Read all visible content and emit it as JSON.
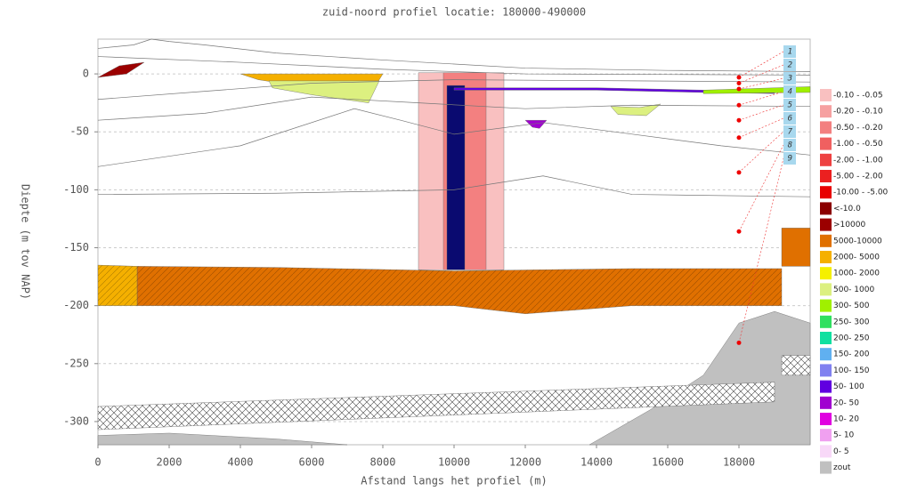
{
  "chart_data": {
    "type": "profile",
    "title": "zuid-noord profiel locatie: 180000-490000",
    "x_label": "Afstand langs het profiel (m)",
    "y_label": "Diepte (m tov NAP)",
    "xlim": [
      0,
      20000
    ],
    "ylim": [
      -320,
      30
    ],
    "xticks": [
      0,
      2000,
      4000,
      6000,
      8000,
      10000,
      12000,
      14000,
      16000,
      18000
    ],
    "yticks": [
      -300,
      -250,
      -200,
      -150,
      -100,
      -50,
      0
    ],
    "grid": true,
    "bodies": [
      {
        "color": "#c0c0c0",
        "x": [
          13800,
          15500,
          17000,
          18000,
          19000,
          20000,
          20000
        ],
        "y": [
          -320,
          -290,
          -260,
          -215,
          -205,
          -215,
          -320
        ]
      },
      {
        "color": "#c0c0c0",
        "x": [
          0,
          2000,
          5000,
          7000,
          0
        ],
        "y": [
          -312,
          -310,
          -315,
          -320,
          -320
        ]
      },
      {
        "color": "#ffffff",
        "pattern": "cross",
        "x": [
          0,
          19000,
          19000,
          0
        ],
        "y": [
          -287,
          -266,
          -283,
          -307
        ]
      },
      {
        "color": "#ffffff",
        "pattern": "cross",
        "x": [
          19200,
          20000,
          20000,
          19200
        ],
        "y": [
          -243,
          -243,
          -260,
          -260
        ]
      },
      {
        "color": "#e07000",
        "pattern": "diagonal",
        "x": [
          1100,
          5000,
          10000,
          15000,
          19200,
          19200,
          15000,
          12000,
          10000,
          1100
        ],
        "y": [
          -166,
          -167,
          -170,
          -168,
          -168,
          -200,
          -200,
          -207,
          -200,
          -200
        ]
      },
      {
        "color": "#f5b000",
        "pattern": "diagonal",
        "x": [
          0,
          1100,
          1100,
          0
        ],
        "y": [
          -165,
          -166,
          -200,
          -200
        ]
      },
      {
        "color": "#e07000",
        "x": [
          19200,
          20000,
          20000,
          19200
        ],
        "y": [
          -133,
          -133,
          -166,
          -166
        ]
      },
      {
        "color": "#f9c0c0",
        "x": [
          9000,
          11400,
          11400,
          9000
        ],
        "y": [
          1,
          1,
          -169,
          -169
        ]
      },
      {
        "color": "#f38080",
        "x": [
          9700,
          10900,
          10900,
          9700
        ],
        "y": [
          1,
          1,
          -169,
          -169
        ]
      },
      {
        "color": "#0a0a70",
        "x": [
          9800,
          10300,
          10300,
          9800
        ],
        "y": [
          -10,
          -10,
          -169,
          -169
        ]
      },
      {
        "color": "#9b0000",
        "x": [
          0,
          600,
          1300,
          800,
          0
        ],
        "y": [
          -3,
          7,
          10,
          0,
          -3
        ]
      },
      {
        "color": "#f5b000",
        "x": [
          4000,
          8000,
          7800,
          6000,
          4500
        ],
        "y": [
          0,
          0,
          -10,
          -12,
          -5
        ]
      },
      {
        "color": "#dcf080",
        "x": [
          4800,
          7900,
          7600,
          6000,
          4900
        ],
        "y": [
          -6,
          -6,
          -25,
          -18,
          -12
        ]
      },
      {
        "color": "#6000e0",
        "x": [
          10000,
          14000,
          17000,
          19000,
          19000,
          17000,
          14000,
          10000
        ],
        "y": [
          -12,
          -12,
          -14,
          -15,
          -17,
          -16,
          -14,
          -14
        ]
      },
      {
        "color": "#a0f000",
        "x": [
          17000,
          20000,
          20000,
          17000
        ],
        "y": [
          -14,
          -11,
          -16,
          -17
        ]
      },
      {
        "color": "#dcf080",
        "x": [
          14400,
          15200,
          15800,
          15400,
          14600
        ],
        "y": [
          -28,
          -29,
          -26,
          -36,
          -35
        ]
      },
      {
        "color": "#a000d0",
        "x": [
          12000,
          12600,
          12400,
          12200
        ],
        "y": [
          -40,
          -40,
          -47,
          -46
        ]
      }
    ],
    "lines": [
      {
        "x": [
          0,
          1000,
          1500,
          2000,
          3000,
          5000,
          8000,
          12000,
          16000,
          20000
        ],
        "y": [
          22,
          25,
          30,
          28,
          25,
          18,
          12,
          5,
          3,
          2
        ]
      },
      {
        "x": [
          0,
          4000,
          8000,
          12000,
          20000
        ],
        "y": [
          15,
          10,
          4,
          0,
          -1
        ]
      },
      {
        "x": [
          0,
          3000,
          6000,
          10000,
          15000,
          20000
        ],
        "y": [
          -22,
          -15,
          -8,
          -5,
          -6,
          -7
        ]
      },
      {
        "x": [
          0,
          3000,
          6000,
          9000,
          12000,
          15000,
          20000
        ],
        "y": [
          -40,
          -34,
          -20,
          -25,
          -30,
          -27,
          -28
        ]
      },
      {
        "x": [
          0,
          4000,
          7200,
          8500,
          10000,
          12500,
          15000,
          17500,
          20000
        ],
        "y": [
          -80,
          -62,
          -30,
          -40,
          -52,
          -42,
          -52,
          -62,
          -70
        ]
      },
      {
        "x": [
          0,
          5000,
          10000,
          12500,
          15000,
          20000
        ],
        "y": [
          -104,
          -103,
          -100,
          -88,
          -104,
          -106
        ]
      }
    ],
    "wells": {
      "x": 18000,
      "y": [
        -3,
        -8,
        -13,
        -27,
        -40,
        -55,
        -85,
        -136,
        -232
      ],
      "labels": [
        "1",
        "2",
        "3",
        "4",
        "5",
        "6",
        "7",
        "8",
        "9"
      ]
    },
    "legend": [
      {
        "label": "-0.10 - -0.05",
        "color": "#f9c0c0"
      },
      {
        "label": "-0.20 - -0.10",
        "color": "#f6a0a0"
      },
      {
        "label": "-0.50 - -0.20",
        "color": "#f38080"
      },
      {
        "label": "-1.00 - -0.50",
        "color": "#f06060"
      },
      {
        "label": "-2.00 - -1.00",
        "color": "#ee4040"
      },
      {
        "label": "-5.00 - -2.00",
        "color": "#eb2020"
      },
      {
        "label": "-10.00 - -5.00",
        "color": "#e80000"
      },
      {
        "label": "<-10.0",
        "color": "#8b0000"
      },
      {
        "label": ">10000",
        "color": "#9b0000"
      },
      {
        "label": "5000-10000",
        "color": "#e07000"
      },
      {
        "label": "2000- 5000",
        "color": "#f5b000"
      },
      {
        "label": "1000- 2000",
        "color": "#f5f000"
      },
      {
        "label": "500- 1000",
        "color": "#dcf080"
      },
      {
        "label": "300- 500",
        "color": "#a0f000"
      },
      {
        "label": "250- 300",
        "color": "#30e060"
      },
      {
        "label": "200- 250",
        "color": "#10e0a0"
      },
      {
        "label": "150- 200",
        "color": "#60b0f0"
      },
      {
        "label": "100- 150",
        "color": "#8080f0"
      },
      {
        "label": "50- 100",
        "color": "#6000e0"
      },
      {
        "label": "20- 50",
        "color": "#a000d0"
      },
      {
        "label": "10- 20",
        "color": "#e000e0"
      },
      {
        "label": "5- 10",
        "color": "#f0a0f0"
      },
      {
        "label": "0- 5",
        "color": "#f8d8f8"
      },
      {
        "label": "zout",
        "color": "#c0c0c0"
      }
    ]
  }
}
